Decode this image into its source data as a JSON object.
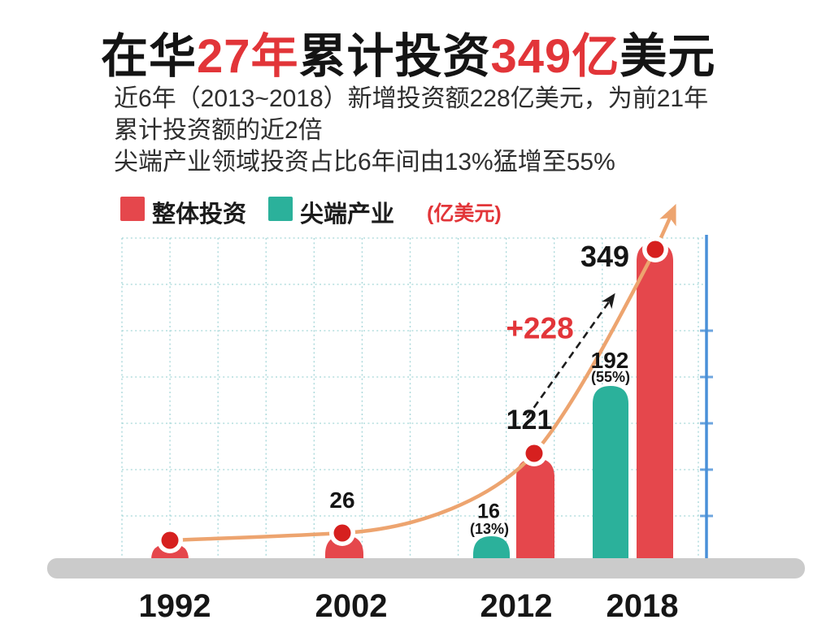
{
  "title": {
    "segments": [
      {
        "text": "在华",
        "accent": false
      },
      {
        "text": "27年",
        "accent": true
      },
      {
        "text": "累计投资",
        "accent": false
      },
      {
        "text": "349亿",
        "accent": true
      },
      {
        "text": "美元",
        "accent": false
      }
    ]
  },
  "subtitle": {
    "lines": [
      "近6年（2013~2018）新增投资额228亿美元，为前21年",
      "累计投资额的近2倍",
      "尖端产业领域投资占比6年间由13%猛增至55%"
    ]
  },
  "legend": {
    "items": [
      {
        "label": "整体投资",
        "color": "#e5474c"
      },
      {
        "label": "尖端产业",
        "color": "#2bb19b"
      }
    ],
    "unit_label": "(亿美元)"
  },
  "chart_data": {
    "type": "bar",
    "title": "在华27年累计投资349亿美元",
    "unit": "亿美元",
    "categories": [
      "1992",
      "2002",
      "2012",
      "2018"
    ],
    "series": [
      {
        "name": "整体投资",
        "color": "#e5474c",
        "values": [
          15,
          26,
          121,
          349
        ],
        "value_labels": [
          "",
          "26",
          "121",
          "349"
        ]
      },
      {
        "name": "尖端产业",
        "color": "#2bb19b",
        "values": [
          null,
          null,
          16,
          192
        ],
        "value_labels": [
          "",
          "",
          "16",
          "192"
        ],
        "pct_labels": [
          "",
          "",
          "(13%)",
          "(55%)"
        ]
      }
    ],
    "annotations": [
      {
        "text": "+228",
        "meaning": "increase from 121 to 349 (2012→2018)"
      }
    ],
    "trend_line": {
      "series": "整体投资",
      "style": "orange curve with arrow through bar tops"
    },
    "legend_position": "top-left",
    "grid": true,
    "ylim": [
      0,
      420
    ]
  },
  "colors": {
    "accent_red": "#e23539",
    "bar_red": "#e5474c",
    "bar_teal": "#2bb19b",
    "trend_orange": "#eda46f",
    "dot_red": "#d6201f",
    "axis_blue": "#4a90d8",
    "grid_teal": "#a5d6d8",
    "baseline_gray": "#cbcbcb"
  }
}
